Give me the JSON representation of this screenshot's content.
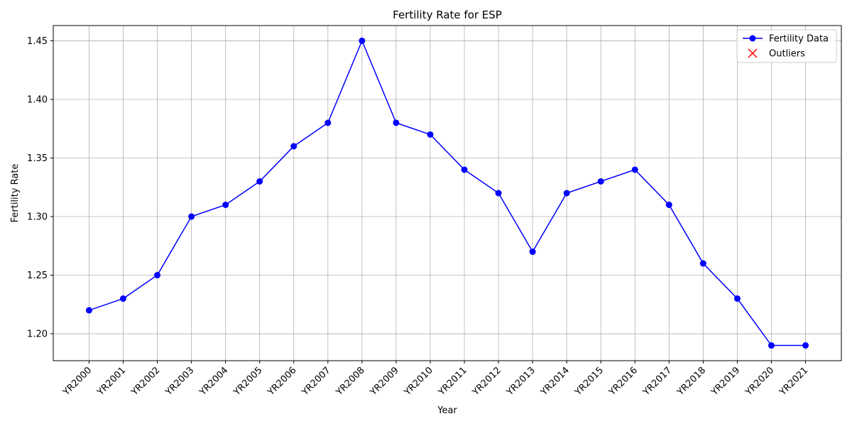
{
  "chart_data": {
    "type": "line",
    "title": "Fertility Rate for ESP",
    "x_label": "Year",
    "y_label": "Fertility Rate",
    "categories": [
      "YR2000",
      "YR2001",
      "YR2002",
      "YR2003",
      "YR2004",
      "YR2005",
      "YR2006",
      "YR2007",
      "YR2008",
      "YR2009",
      "YR2010",
      "YR2011",
      "YR2012",
      "YR2013",
      "YR2014",
      "YR2015",
      "YR2016",
      "YR2017",
      "YR2018",
      "YR2019",
      "YR2020",
      "YR2021"
    ],
    "series": [
      {
        "name": "Fertility Data",
        "color": "blue",
        "marker": "o",
        "values": [
          1.22,
          1.23,
          1.25,
          1.3,
          1.31,
          1.33,
          1.36,
          1.38,
          1.45,
          1.38,
          1.37,
          1.34,
          1.32,
          1.27,
          1.32,
          1.33,
          1.34,
          1.31,
          1.26,
          1.23,
          1.19,
          1.19
        ]
      },
      {
        "name": "Outliers",
        "color": "red",
        "marker": "x",
        "values": [
          null,
          null,
          null,
          null,
          null,
          null,
          null,
          null,
          null,
          null,
          null,
          null,
          null,
          null,
          null,
          null,
          null,
          null,
          null,
          null,
          null,
          null
        ]
      }
    ],
    "ylim": [
      1.177,
      1.463
    ],
    "yticks": [
      {
        "value": 1.2,
        "label": "1.20"
      },
      1.25,
      {
        "value": 1.3,
        "label": "1.30"
      },
      1.35,
      {
        "value": 1.4,
        "label": "1.40"
      },
      1.45
    ],
    "grid": true,
    "legend": "upper right"
  }
}
